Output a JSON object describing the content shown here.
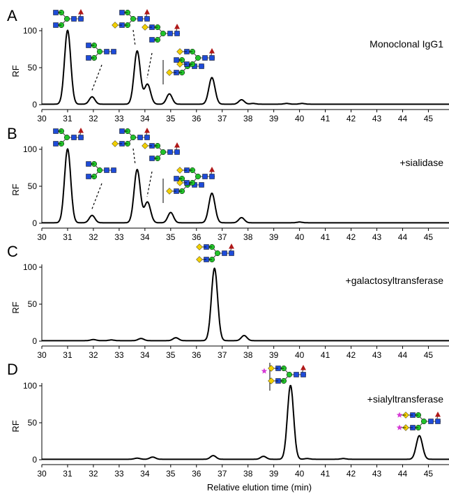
{
  "figure": {
    "xlabel": "Relative elution time (min)"
  },
  "chart_data": [
    {
      "panel": "A",
      "type": "line",
      "label": "Monoclonal IgG1",
      "ylabel": "RF",
      "xlim": [
        30,
        45.8
      ],
      "ylim": [
        0,
        100
      ],
      "yticks": [
        0,
        50,
        100
      ],
      "xticks": [
        30,
        31,
        32,
        33,
        34,
        35,
        36,
        37,
        38,
        39,
        40,
        41,
        42,
        43,
        44,
        45
      ],
      "peaks": [
        {
          "x": 31.0,
          "y": 100,
          "glycan": "G0F"
        },
        {
          "x": 31.95,
          "y": 10,
          "glycan": "G0"
        },
        {
          "x": 33.7,
          "y": 72,
          "glycan": "G1F"
        },
        {
          "x": 34.1,
          "y": 27,
          "glycan": "G1F'"
        },
        {
          "x": 34.95,
          "y": 14,
          "glycan": "G1"
        },
        {
          "x": 36.6,
          "y": 36,
          "glycan": "G2F"
        },
        {
          "x": 37.75,
          "y": 6,
          "glycan": ""
        },
        {
          "x": 38.2,
          "y": 1,
          "glycan": ""
        },
        {
          "x": 39.5,
          "y": 1,
          "glycan": ""
        },
        {
          "x": 40.1,
          "y": 1,
          "glycan": ""
        }
      ]
    },
    {
      "panel": "B",
      "type": "line",
      "label": "+sialidase",
      "ylabel": "RF",
      "xlim": [
        30,
        45.8
      ],
      "ylim": [
        0,
        100
      ],
      "yticks": [
        0,
        50,
        100
      ],
      "xticks": [
        30,
        31,
        32,
        33,
        34,
        35,
        36,
        37,
        38,
        39,
        40,
        41,
        42,
        43,
        44,
        45
      ],
      "peaks": [
        {
          "x": 31.0,
          "y": 100,
          "glycan": "G0F"
        },
        {
          "x": 31.95,
          "y": 10,
          "glycan": "G0"
        },
        {
          "x": 33.7,
          "y": 72,
          "glycan": "G1F"
        },
        {
          "x": 34.1,
          "y": 28,
          "glycan": "G1F'"
        },
        {
          "x": 35.0,
          "y": 14,
          "glycan": "G1"
        },
        {
          "x": 36.6,
          "y": 40,
          "glycan": "G2F"
        },
        {
          "x": 37.75,
          "y": 7,
          "glycan": ""
        },
        {
          "x": 40.0,
          "y": 1,
          "glycan": ""
        }
      ]
    },
    {
      "panel": "C",
      "type": "line",
      "label": "+galactosyltransferase",
      "ylabel": "RF",
      "xlim": [
        30,
        45.8
      ],
      "ylim": [
        0,
        100
      ],
      "yticks": [
        0,
        50,
        100
      ],
      "xticks": [
        30,
        31,
        32,
        33,
        34,
        35,
        36,
        37,
        38,
        39,
        40,
        41,
        42,
        43,
        44,
        45
      ],
      "peaks": [
        {
          "x": 32.0,
          "y": 1.5,
          "glycan": ""
        },
        {
          "x": 32.7,
          "y": 1,
          "glycan": ""
        },
        {
          "x": 33.85,
          "y": 3,
          "glycan": ""
        },
        {
          "x": 35.2,
          "y": 4,
          "glycan": ""
        },
        {
          "x": 36.7,
          "y": 98,
          "glycan": "G2F"
        },
        {
          "x": 37.85,
          "y": 7,
          "glycan": ""
        }
      ]
    },
    {
      "panel": "D",
      "type": "line",
      "label": "+sialyltransferase",
      "ylabel": "RF",
      "xlim": [
        30,
        45.8
      ],
      "ylim": [
        0,
        100
      ],
      "yticks": [
        0,
        50,
        100
      ],
      "xticks": [
        30,
        31,
        32,
        33,
        34,
        35,
        36,
        37,
        38,
        39,
        40,
        41,
        42,
        43,
        44,
        45
      ],
      "peaks": [
        {
          "x": 33.7,
          "y": 1.5,
          "glycan": ""
        },
        {
          "x": 34.3,
          "y": 3,
          "glycan": ""
        },
        {
          "x": 36.65,
          "y": 5,
          "glycan": ""
        },
        {
          "x": 38.6,
          "y": 4,
          "glycan": ""
        },
        {
          "x": 39.65,
          "y": 100,
          "glycan": "A1G2F"
        },
        {
          "x": 40.3,
          "y": 1,
          "glycan": ""
        },
        {
          "x": 41.7,
          "y": 1,
          "glycan": ""
        },
        {
          "x": 44.65,
          "y": 32,
          "glycan": "A2G2F"
        }
      ]
    }
  ],
  "glycan_colors": {
    "mannose": "#22c22a",
    "glcnac": "#1e4bd8",
    "galactose": "#f2d000",
    "fucose": "#b01818",
    "sialic_acid": "#d63ad6"
  }
}
